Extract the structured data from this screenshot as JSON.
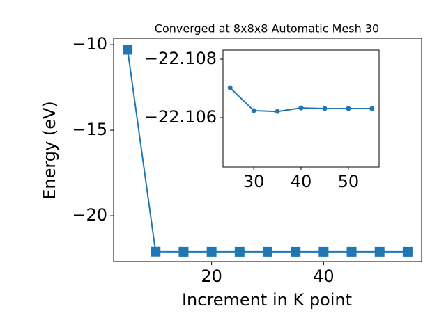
{
  "chart_data": [
    {
      "type": "line",
      "title": "Converged at 8x8x8 Automatic Mesh 30",
      "x_label": "Increment in K point",
      "y_label": "Energy (eV)",
      "x": [
        5,
        10,
        15,
        20,
        25,
        30,
        35,
        40,
        45,
        50,
        55
      ],
      "series": [
        {
          "color": "#1f77b4",
          "marker": "square",
          "values": [
            -10.3,
            -22.1,
            -22.107,
            -22.107,
            -22.10702,
            -22.10624,
            -22.10621,
            -22.10633,
            -22.10631,
            -22.10631,
            -22.10631
          ]
        }
      ],
      "xlim": [
        2.5,
        57.5
      ],
      "ylim": [
        -22.68,
        -9.63
      ],
      "xticks": [
        20,
        40
      ],
      "yticks": [
        {
          "value": -20,
          "label": "−20"
        },
        {
          "value": -15,
          "label": "−15"
        },
        {
          "value": -10,
          "label": "−10"
        }
      ]
    },
    {
      "type": "line",
      "x": [
        25,
        30,
        35,
        40,
        45,
        50,
        55
      ],
      "series": [
        {
          "color": "#1f77b4",
          "marker": "circle",
          "values": [
            -22.10702,
            -22.10624,
            -22.10621,
            -22.10633,
            -22.10631,
            -22.10631,
            -22.10631
          ]
        }
      ],
      "xlim": [
        23.5,
        56.5
      ],
      "ylim": [
        -22.10431,
        -22.10831
      ],
      "xticks": [
        30,
        40,
        50
      ],
      "yticks": [
        {
          "value": -22.108,
          "label": "−22.108"
        },
        {
          "value": -22.106,
          "label": "−22.106"
        }
      ]
    }
  ]
}
